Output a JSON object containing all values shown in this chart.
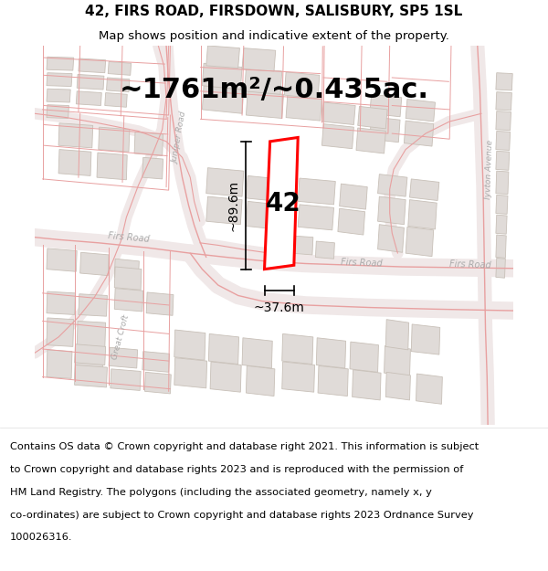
{
  "title_line1": "42, FIRS ROAD, FIRSDOWN, SALISBURY, SP5 1SL",
  "title_line2": "Map shows position and indicative extent of the property.",
  "area_text": "~1761m²/~0.435ac.",
  "property_label": "42",
  "dim_height": "~89.6m",
  "dim_width": "~37.6m",
  "footer_lines": [
    "Contains OS data © Crown copyright and database right 2021. This information is subject",
    "to Crown copyright and database rights 2023 and is reproduced with the permission of",
    "HM Land Registry. The polygons (including the associated geometry, namely x, y",
    "co-ordinates) are subject to Crown copyright and database rights 2023 Ordnance Survey",
    "100026316."
  ],
  "map_bg": "#ffffff",
  "road_line_color": "#e8a0a0",
  "road_fill_color": "#f5e8e8",
  "building_fill": "#e0dbd8",
  "building_outline": "#c8c0b8",
  "plot_outline_color": "#e8b0b0",
  "property_fill": "#ffffff",
  "property_outline": "#ff0000",
  "text_color": "#000000",
  "road_label_color": "#aaaaaa",
  "title_fontsize": 11,
  "subtitle_fontsize": 9.5,
  "area_fontsize": 22,
  "label_fontsize": 20,
  "dim_fontsize": 10,
  "footer_fontsize": 8.2
}
